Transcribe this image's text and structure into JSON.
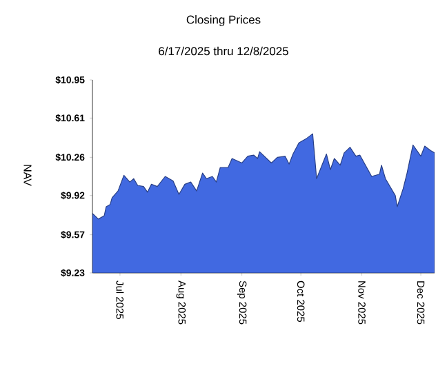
{
  "chart_data": {
    "type": "area",
    "title": "Closing Prices",
    "subtitle": "6/17/2025 thru 12/8/2025",
    "ylabel": "NAV",
    "x": [
      "2025-06-17",
      "2025-06-20",
      "2025-06-23",
      "2025-06-24",
      "2025-06-26",
      "2025-06-27",
      "2025-06-30",
      "2025-07-03",
      "2025-07-06",
      "2025-07-08",
      "2025-07-10",
      "2025-07-13",
      "2025-07-15",
      "2025-07-17",
      "2025-07-20",
      "2025-07-24",
      "2025-07-28",
      "2025-07-31",
      "2025-08-03",
      "2025-08-06",
      "2025-08-09",
      "2025-08-12",
      "2025-08-14",
      "2025-08-17",
      "2025-08-19",
      "2025-08-21",
      "2025-08-25",
      "2025-08-27",
      "2025-09-01",
      "2025-09-04",
      "2025-09-07",
      "2025-09-09",
      "2025-09-10",
      "2025-09-16",
      "2025-09-19",
      "2025-09-23",
      "2025-09-25",
      "2025-09-27",
      "2025-09-30",
      "2025-10-04",
      "2025-10-07",
      "2025-10-09",
      "2025-10-14",
      "2025-10-16",
      "2025-10-18",
      "2025-10-21",
      "2025-10-23",
      "2025-10-26",
      "2025-10-29",
      "2025-10-31",
      "2025-11-06",
      "2025-11-10",
      "2025-11-11",
      "2025-11-13",
      "2025-11-18",
      "2025-11-19",
      "2025-11-22",
      "2025-11-24",
      "2025-11-27",
      "2025-12-01",
      "2025-12-03",
      "2025-12-06",
      "2025-12-08"
    ],
    "series": [
      {
        "color": "#4169e1",
        "values": [
          9.76,
          9.71,
          9.74,
          9.82,
          9.84,
          9.9,
          9.96,
          10.1,
          10.04,
          10.07,
          10.01,
          10.0,
          9.95,
          10.02,
          10.0,
          10.09,
          10.05,
          9.93,
          10.02,
          10.04,
          9.96,
          10.12,
          10.07,
          10.09,
          10.04,
          10.17,
          10.17,
          10.25,
          10.21,
          10.27,
          10.28,
          10.25,
          10.31,
          10.21,
          10.26,
          10.27,
          10.2,
          10.29,
          10.39,
          10.43,
          10.47,
          10.07,
          10.29,
          10.15,
          10.25,
          10.19,
          10.3,
          10.35,
          10.27,
          10.28,
          10.09,
          10.11,
          10.19,
          10.07,
          9.92,
          9.82,
          9.98,
          10.12,
          10.37,
          10.27,
          10.36,
          10.32,
          10.3
        ]
      }
    ],
    "xlim": [
      "2025-06-17",
      "2025-12-08"
    ],
    "xticks": [
      {
        "value": "2025-07-01",
        "label": "Jul  2025"
      },
      {
        "value": "2025-08-01",
        "label": "Aug  2025"
      },
      {
        "value": "2025-09-01",
        "label": "Sep  2025"
      },
      {
        "value": "2025-10-01",
        "label": "Oct  2025"
      },
      {
        "value": "2025-11-01",
        "label": "Nov  2025"
      },
      {
        "value": "2025-12-01",
        "label": "Dec  2025"
      }
    ],
    "ylim": [
      9.23,
      10.95
    ],
    "yticks": [
      {
        "value": 9.23,
        "label": "$9.23"
      },
      {
        "value": 9.57,
        "label": "$9.57"
      },
      {
        "value": 9.92,
        "label": "$9.92"
      },
      {
        "value": 10.26,
        "label": "$10.26"
      },
      {
        "value": 10.61,
        "label": "$10.61"
      },
      {
        "value": 10.95,
        "label": "$10.95"
      }
    ],
    "grid": false
  }
}
